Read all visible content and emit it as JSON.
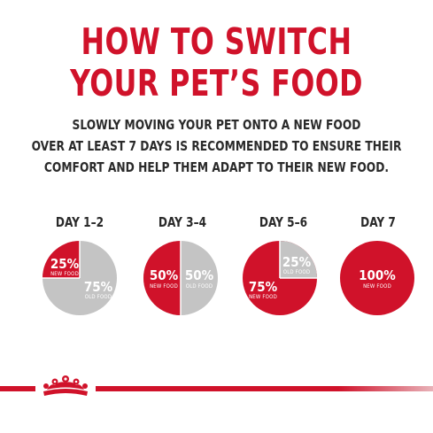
{
  "title": {
    "line1": "HOW TO SWITCH",
    "line2": "YOUR PET’S FOOD"
  },
  "intro": {
    "line1": "SLOWLY MOVING YOUR PET ONTO A NEW FOOD",
    "line2": "OVER AT LEAST 7 DAYS IS RECOMMENDED TO ENSURE THEIR",
    "line3": "COMFORT AND HELP THEM ADAPT TO THEIR NEW FOOD."
  },
  "colors": {
    "red": "#d0122a",
    "gray": "#c4c4c4",
    "text": "#2a2a2a"
  },
  "steps": [
    {
      "label": "DAY 1–2",
      "new_pct": 25,
      "new_text": "25%",
      "new_label": "NEW FOOD",
      "old_text": "75%",
      "old_label": "OLD FOOD"
    },
    {
      "label": "DAY 3–4",
      "new_pct": 50,
      "new_text": "50%",
      "new_label": "NEW FOOD",
      "old_text": "50%",
      "old_label": "OLD FOOD"
    },
    {
      "label": "DAY 5–6",
      "new_pct": 75,
      "new_text": "75%",
      "new_label": "NEW FOOD",
      "old_text": "25%",
      "old_label": "OLD FOOD"
    },
    {
      "label": "DAY 7",
      "new_pct": 100,
      "new_text": "100%",
      "new_label": "NEW FOOD",
      "old_text": "",
      "old_label": ""
    }
  ],
  "logo": {
    "name": "crown-logo"
  }
}
